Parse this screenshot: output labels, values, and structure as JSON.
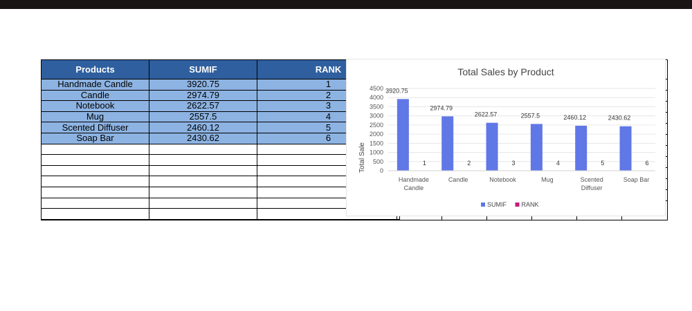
{
  "table": {
    "headers": [
      "Products",
      "SUMIF",
      "RANK"
    ],
    "rows": [
      [
        "Handmade Candle",
        "3920.75",
        "1"
      ],
      [
        "Candle",
        "2974.79",
        "2"
      ],
      [
        "Notebook",
        "2622.57",
        "3"
      ],
      [
        "Mug",
        "2557.5",
        "4"
      ],
      [
        "Scented Diffuser",
        "2460.12",
        "5"
      ],
      [
        "Soap Bar",
        "2430.62",
        "6"
      ]
    ]
  },
  "chart_data": {
    "type": "bar",
    "title": "Total Sales by Product",
    "ylabel": "Total Sale",
    "xlabel": "",
    "categories": [
      [
        "Handmade",
        "Candle"
      ],
      [
        "Candle"
      ],
      [
        "Notebook"
      ],
      [
        "Mug"
      ],
      [
        "Scented",
        "Diffuser"
      ],
      [
        "Soap Bar"
      ]
    ],
    "series": [
      {
        "name": "SUMIF",
        "values": [
          3920.75,
          2974.79,
          2622.57,
          2557.5,
          2460.12,
          2430.62
        ],
        "color": "#6077e6",
        "labels": [
          "3920.75",
          "2974.79",
          "2622.57",
          "2557.5",
          "2460.12",
          "2430.62"
        ]
      },
      {
        "name": "RANK",
        "values": [
          1,
          2,
          3,
          4,
          5,
          6
        ],
        "color": "#c51b7d",
        "labels": [
          "1",
          "2",
          "3",
          "4",
          "5",
          "6"
        ]
      }
    ],
    "ylim": [
      0,
      4500
    ],
    "yticks": [
      "0",
      "500",
      "1000",
      "1500",
      "2000",
      "2500",
      "3000",
      "3500",
      "4000",
      "4500"
    ],
    "grid": true,
    "legend_position": "bottom"
  }
}
